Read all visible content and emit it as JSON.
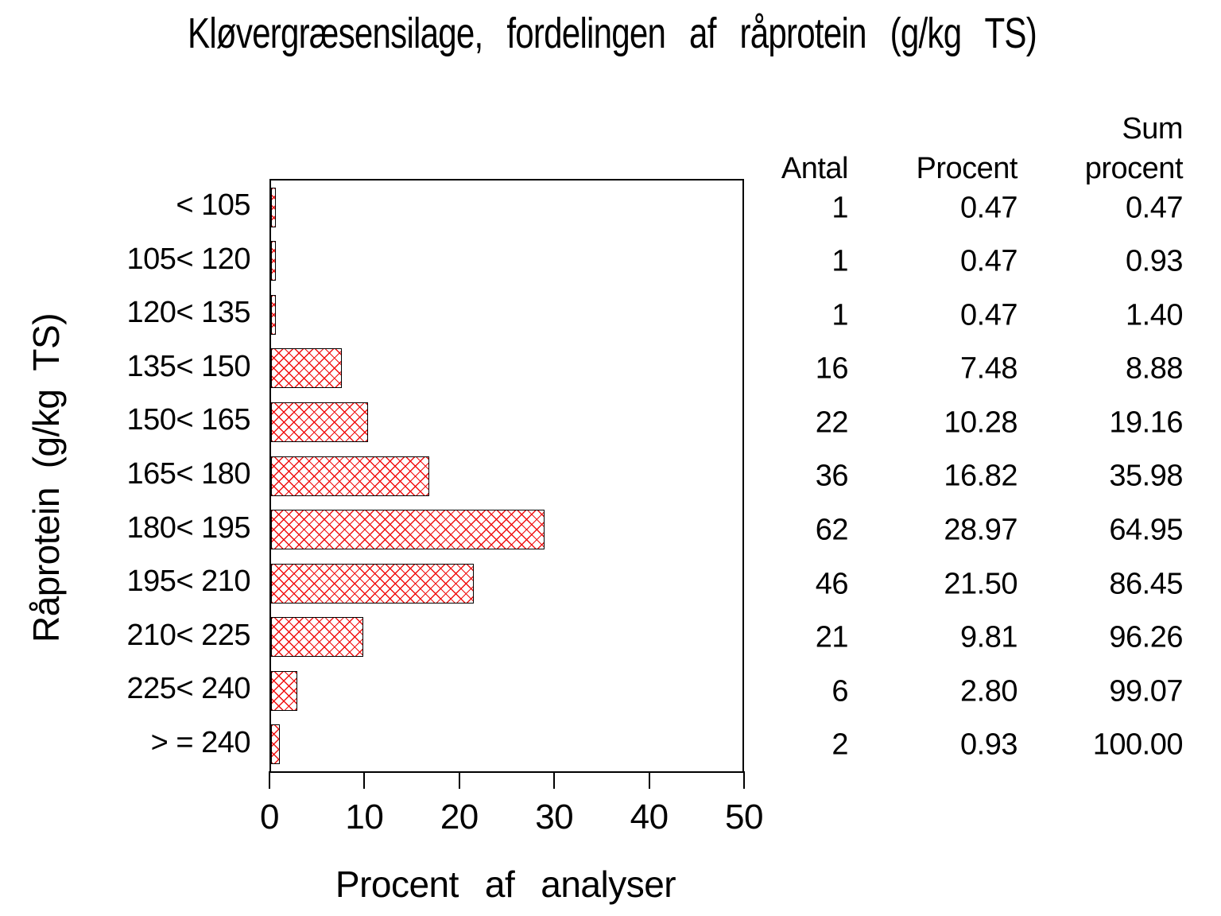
{
  "title": "Kløvergræsensilage, fordelingen af råprotein (g/kg TS)",
  "chart_data": {
    "type": "bar",
    "orientation": "horizontal",
    "title": "Kløvergræsensilage, fordelingen af råprotein (g/kg TS)",
    "categories": [
      "< 105",
      "105< 120",
      "120< 135",
      "135< 150",
      "150< 165",
      "165< 180",
      "180< 195",
      "195< 210",
      "210< 225",
      "225< 240",
      "> = 240"
    ],
    "values": [
      0.47,
      0.47,
      0.47,
      7.48,
      10.28,
      16.82,
      28.97,
      21.5,
      9.81,
      2.8,
      0.93
    ],
    "xlabel": "Procent af analyser",
    "ylabel": "Råprotein (g/kg TS)",
    "xlim": [
      0,
      50
    ],
    "xticks": [
      0,
      10,
      20,
      30,
      40,
      50
    ],
    "grid": false,
    "legend": "none",
    "bar_pattern": "crosshatch",
    "bar_color": "#f01010",
    "bar_border_color": "#000000",
    "frame_color": "#000000"
  },
  "table": {
    "headers": {
      "antal": "Antal",
      "procent": "Procent",
      "sum_line1": "Sum",
      "sum_line2": "procent"
    },
    "rows": [
      {
        "antal": "1",
        "procent": "0.47",
        "sum": "0.47"
      },
      {
        "antal": "1",
        "procent": "0.47",
        "sum": "0.93"
      },
      {
        "antal": "1",
        "procent": "0.47",
        "sum": "1.40"
      },
      {
        "antal": "16",
        "procent": "7.48",
        "sum": "8.88"
      },
      {
        "antal": "22",
        "procent": "10.28",
        "sum": "19.16"
      },
      {
        "antal": "36",
        "procent": "16.82",
        "sum": "35.98"
      },
      {
        "antal": "62",
        "procent": "28.97",
        "sum": "64.95"
      },
      {
        "antal": "46",
        "procent": "21.50",
        "sum": "86.45"
      },
      {
        "antal": "21",
        "procent": "9.81",
        "sum": "96.26"
      },
      {
        "antal": "6",
        "procent": "2.80",
        "sum": "99.07"
      },
      {
        "antal": "2",
        "procent": "0.93",
        "sum": "100.00"
      }
    ]
  }
}
